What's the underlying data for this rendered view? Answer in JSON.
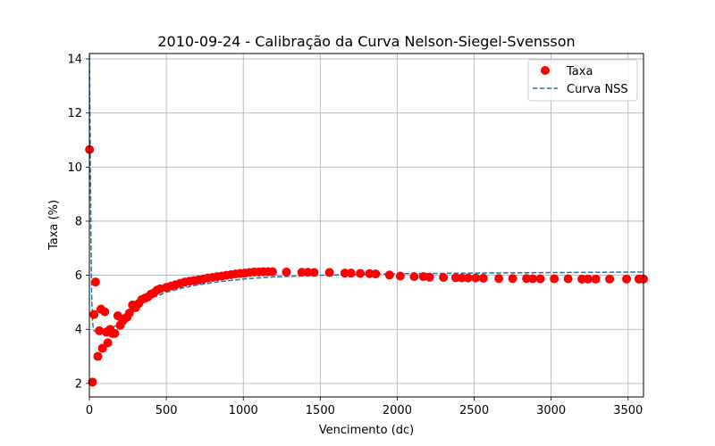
{
  "chart_data": {
    "type": "scatter",
    "title": "2010-09-24 - Calibração da Curva Nelson-Siegel-Svensson",
    "xlabel": "Vencimento (dc)",
    "ylabel": "Taxa (%)",
    "xlim": [
      0,
      3600
    ],
    "ylim": [
      1.5,
      14.2
    ],
    "xticks": [
      0,
      500,
      1000,
      1500,
      2000,
      2500,
      3000,
      3500
    ],
    "yticks": [
      2,
      4,
      6,
      8,
      10,
      12,
      14
    ],
    "grid": true,
    "legend_position": "top-right",
    "series": [
      {
        "name": "Taxa",
        "kind": "scatter",
        "color": "#ff0000",
        "points": [
          [
            1,
            10.65
          ],
          [
            20,
            2.05
          ],
          [
            30,
            4.55
          ],
          [
            40,
            5.75
          ],
          [
            55,
            3.0
          ],
          [
            65,
            3.95
          ],
          [
            75,
            4.75
          ],
          [
            85,
            3.3
          ],
          [
            100,
            4.65
          ],
          [
            110,
            3.9
          ],
          [
            120,
            3.5
          ],
          [
            135,
            4.0
          ],
          [
            150,
            3.85
          ],
          [
            165,
            3.85
          ],
          [
            185,
            4.5
          ],
          [
            200,
            4.15
          ],
          [
            215,
            4.3
          ],
          [
            230,
            4.4
          ],
          [
            245,
            4.45
          ],
          [
            260,
            4.6
          ],
          [
            280,
            4.9
          ],
          [
            300,
            4.8
          ],
          [
            320,
            4.95
          ],
          [
            340,
            5.1
          ],
          [
            360,
            5.15
          ],
          [
            380,
            5.2
          ],
          [
            400,
            5.3
          ],
          [
            420,
            5.35
          ],
          [
            440,
            5.45
          ],
          [
            460,
            5.5
          ],
          [
            500,
            5.55
          ],
          [
            530,
            5.6
          ],
          [
            560,
            5.65
          ],
          [
            590,
            5.7
          ],
          [
            620,
            5.75
          ],
          [
            650,
            5.78
          ],
          [
            680,
            5.8
          ],
          [
            710,
            5.83
          ],
          [
            740,
            5.86
          ],
          [
            770,
            5.9
          ],
          [
            800,
            5.92
          ],
          [
            830,
            5.95
          ],
          [
            860,
            5.97
          ],
          [
            890,
            6.0
          ],
          [
            920,
            6.02
          ],
          [
            950,
            6.05
          ],
          [
            980,
            6.07
          ],
          [
            1010,
            6.08
          ],
          [
            1040,
            6.1
          ],
          [
            1070,
            6.12
          ],
          [
            1100,
            6.12
          ],
          [
            1130,
            6.13
          ],
          [
            1160,
            6.13
          ],
          [
            1190,
            6.13
          ],
          [
            1280,
            6.12
          ],
          [
            1380,
            6.11
          ],
          [
            1420,
            6.11
          ],
          [
            1460,
            6.1
          ],
          [
            1560,
            6.1
          ],
          [
            1660,
            6.08
          ],
          [
            1700,
            6.08
          ],
          [
            1760,
            6.07
          ],
          [
            1820,
            6.06
          ],
          [
            1860,
            6.05
          ],
          [
            1950,
            6.01
          ],
          [
            2020,
            5.97
          ],
          [
            2110,
            5.95
          ],
          [
            2170,
            5.95
          ],
          [
            2210,
            5.93
          ],
          [
            2300,
            5.92
          ],
          [
            2380,
            5.91
          ],
          [
            2420,
            5.9
          ],
          [
            2460,
            5.9
          ],
          [
            2510,
            5.9
          ],
          [
            2560,
            5.89
          ],
          [
            2660,
            5.88
          ],
          [
            2750,
            5.88
          ],
          [
            2840,
            5.88
          ],
          [
            2880,
            5.87
          ],
          [
            2930,
            5.87
          ],
          [
            3020,
            5.87
          ],
          [
            3110,
            5.87
          ],
          [
            3200,
            5.86
          ],
          [
            3240,
            5.86
          ],
          [
            3290,
            5.86
          ],
          [
            3380,
            5.86
          ],
          [
            3490,
            5.86
          ],
          [
            3570,
            5.86
          ],
          [
            3600,
            5.86
          ]
        ]
      },
      {
        "name": "Curva NSS",
        "kind": "line",
        "style": "dashed",
        "color": "#1f77b4",
        "points": [
          [
            0,
            14.4
          ],
          [
            5,
            11.0
          ],
          [
            10,
            7.5
          ],
          [
            15,
            5.2
          ],
          [
            20,
            4.35
          ],
          [
            25,
            4.05
          ],
          [
            30,
            3.95
          ],
          [
            40,
            3.92
          ],
          [
            60,
            3.92
          ],
          [
            100,
            3.96
          ],
          [
            150,
            4.05
          ],
          [
            200,
            4.25
          ],
          [
            250,
            4.5
          ],
          [
            300,
            4.75
          ],
          [
            350,
            4.98
          ],
          [
            400,
            5.15
          ],
          [
            500,
            5.37
          ],
          [
            600,
            5.52
          ],
          [
            700,
            5.64
          ],
          [
            800,
            5.73
          ],
          [
            1000,
            5.86
          ],
          [
            1200,
            5.94
          ],
          [
            1500,
            6.0
          ],
          [
            1800,
            6.04
          ],
          [
            2100,
            6.06
          ],
          [
            2500,
            6.08
          ],
          [
            3000,
            6.1
          ],
          [
            3600,
            6.12
          ]
        ]
      }
    ]
  }
}
